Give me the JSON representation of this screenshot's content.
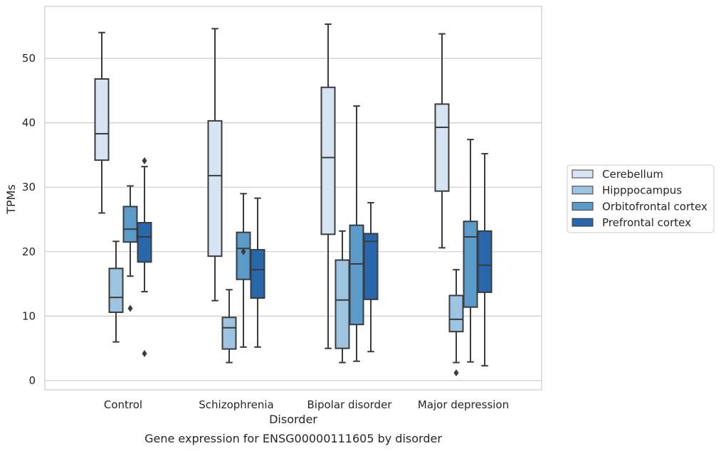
{
  "chart_data": {
    "type": "box",
    "title": "",
    "caption": "Gene expression for ENSG00000111605 by disorder",
    "xlabel": "Disorder",
    "ylabel": "TPMs",
    "ylim": [
      -1.5,
      58
    ],
    "yticks": [
      0,
      10,
      20,
      30,
      40,
      50
    ],
    "grid": "y-only",
    "legend_position": "right",
    "categories": [
      "Control",
      "Schizophrenia",
      "Bipolar disorder",
      "Major depression"
    ],
    "series": [
      {
        "name": "Cerebellum",
        "color": "#d5e3f2",
        "boxes": [
          {
            "whisker_low": 26,
            "q1": 34.2,
            "median": 38.3,
            "q3": 46.8,
            "whisker_high": 54,
            "outliers": []
          },
          {
            "whisker_low": 12.4,
            "q1": 19.3,
            "median": 31.8,
            "q3": 40.3,
            "whisker_high": 54.6,
            "outliers": []
          },
          {
            "whisker_low": 5,
            "q1": 22.7,
            "median": 34.6,
            "q3": 45.5,
            "whisker_high": 55.3,
            "outliers": []
          },
          {
            "whisker_low": 20.6,
            "q1": 29.4,
            "median": 39.3,
            "q3": 42.9,
            "whisker_high": 53.8,
            "outliers": []
          }
        ]
      },
      {
        "name": "Hipppocampus",
        "color": "#9dc4e0",
        "boxes": [
          {
            "whisker_low": 6,
            "q1": 10.6,
            "median": 12.9,
            "q3": 17.4,
            "whisker_high": 21.6,
            "outliers": []
          },
          {
            "whisker_low": 2.8,
            "q1": 4.9,
            "median": 8.2,
            "q3": 9.8,
            "whisker_high": 14.1,
            "outliers": []
          },
          {
            "whisker_low": 2.8,
            "q1": 5,
            "median": 12.5,
            "q3": 18.7,
            "whisker_high": 23.2,
            "outliers": []
          },
          {
            "whisker_low": 2.8,
            "q1": 7.6,
            "median": 9.5,
            "q3": 13.2,
            "whisker_high": 17.2,
            "outliers": [
              1.2
            ]
          }
        ]
      },
      {
        "name": "Orbitofrontal cortex",
        "color": "#5a9bc9",
        "boxes": [
          {
            "whisker_low": 16.2,
            "q1": 21.5,
            "median": 23.5,
            "q3": 27,
            "whisker_high": 30.2,
            "outliers": [
              11.2
            ]
          },
          {
            "whisker_low": 5.2,
            "q1": 15.7,
            "median": 20.5,
            "q3": 23,
            "whisker_high": 29,
            "outliers": [
              20
            ]
          },
          {
            "whisker_low": 3,
            "q1": 8.7,
            "median": 18.1,
            "q3": 24.1,
            "whisker_high": 42.6,
            "outliers": []
          },
          {
            "whisker_low": 2.9,
            "q1": 11.4,
            "median": 22.3,
            "q3": 24.7,
            "whisker_high": 37.4,
            "outliers": []
          }
        ]
      },
      {
        "name": "Prefrontal cortex",
        "color": "#2967ac",
        "boxes": [
          {
            "whisker_low": 13.8,
            "q1": 18.4,
            "median": 22.3,
            "q3": 24.5,
            "whisker_high": 33.2,
            "outliers": [
              34.1,
              4.2
            ]
          },
          {
            "whisker_low": 5.2,
            "q1": 12.8,
            "median": 17.2,
            "q3": 20.3,
            "whisker_high": 28.3,
            "outliers": []
          },
          {
            "whisker_low": 4.5,
            "q1": 12.6,
            "median": 21.6,
            "q3": 22.8,
            "whisker_high": 27.6,
            "outliers": []
          },
          {
            "whisker_low": 2.3,
            "q1": 13.7,
            "median": 17.9,
            "q3": 23.2,
            "whisker_high": 35.2,
            "outliers": []
          }
        ]
      }
    ]
  }
}
